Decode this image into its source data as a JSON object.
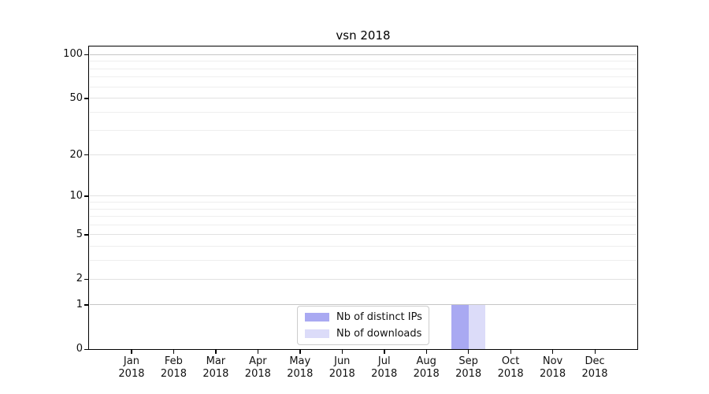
{
  "chart_data": {
    "type": "bar",
    "title": "vsn 2018",
    "categories": [
      "Jan 2018",
      "Feb 2018",
      "Mar 2018",
      "Apr 2018",
      "May 2018",
      "Jun 2018",
      "Jul 2018",
      "Aug 2018",
      "Sep 2018",
      "Oct 2018",
      "Nov 2018",
      "Dec 2018"
    ],
    "series": [
      {
        "name": "Nb of distinct IPs",
        "color": "#a9a9f2",
        "values": [
          0,
          0,
          0,
          0,
          0,
          0,
          0,
          0,
          1,
          0,
          0,
          0
        ]
      },
      {
        "name": "Nb of downloads",
        "color": "#dcdcf9",
        "values": [
          0,
          0,
          0,
          0,
          0,
          0,
          0,
          0,
          1,
          0,
          0,
          0
        ]
      }
    ],
    "xlabel": "",
    "ylabel": "",
    "y_scale": "log1p",
    "ylim": [
      0,
      115
    ],
    "y_ticks": [
      0,
      1,
      2,
      5,
      10,
      20,
      50,
      100
    ],
    "y_minor_gridlines": [
      3,
      4,
      6,
      7,
      8,
      9,
      30,
      40,
      60,
      70,
      80,
      90
    ],
    "grid": "horizontal",
    "legend": {
      "position": "bottom-center",
      "items": [
        "Nb of distinct IPs",
        "Nb of downloads"
      ]
    }
  }
}
